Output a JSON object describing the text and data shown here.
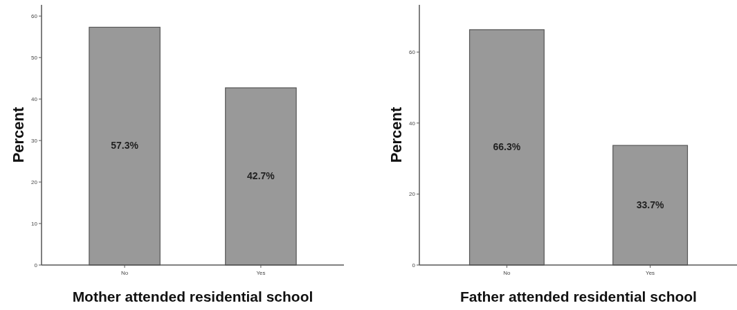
{
  "chart_data": [
    {
      "type": "bar",
      "xlabel": "Mother attended residential school",
      "ylabel": "Percent",
      "categories": [
        "No",
        "Yes"
      ],
      "values": [
        57.3,
        42.7
      ],
      "value_labels": [
        "57.3%",
        "42.7%"
      ],
      "color": "#999999",
      "ylim": [
        0,
        62.7
      ],
      "yticks": [
        0,
        10,
        20,
        30,
        40,
        50,
        60
      ]
    },
    {
      "type": "bar",
      "xlabel": "Father attended residential school",
      "ylabel": "Percent",
      "categories": [
        "No",
        "Yes"
      ],
      "values": [
        66.3,
        33.7
      ],
      "value_labels": [
        "66.3%",
        "33.7%"
      ],
      "color": "#999999",
      "ylim": [
        0,
        73.3
      ],
      "yticks": [
        0,
        20,
        40,
        60
      ]
    }
  ]
}
